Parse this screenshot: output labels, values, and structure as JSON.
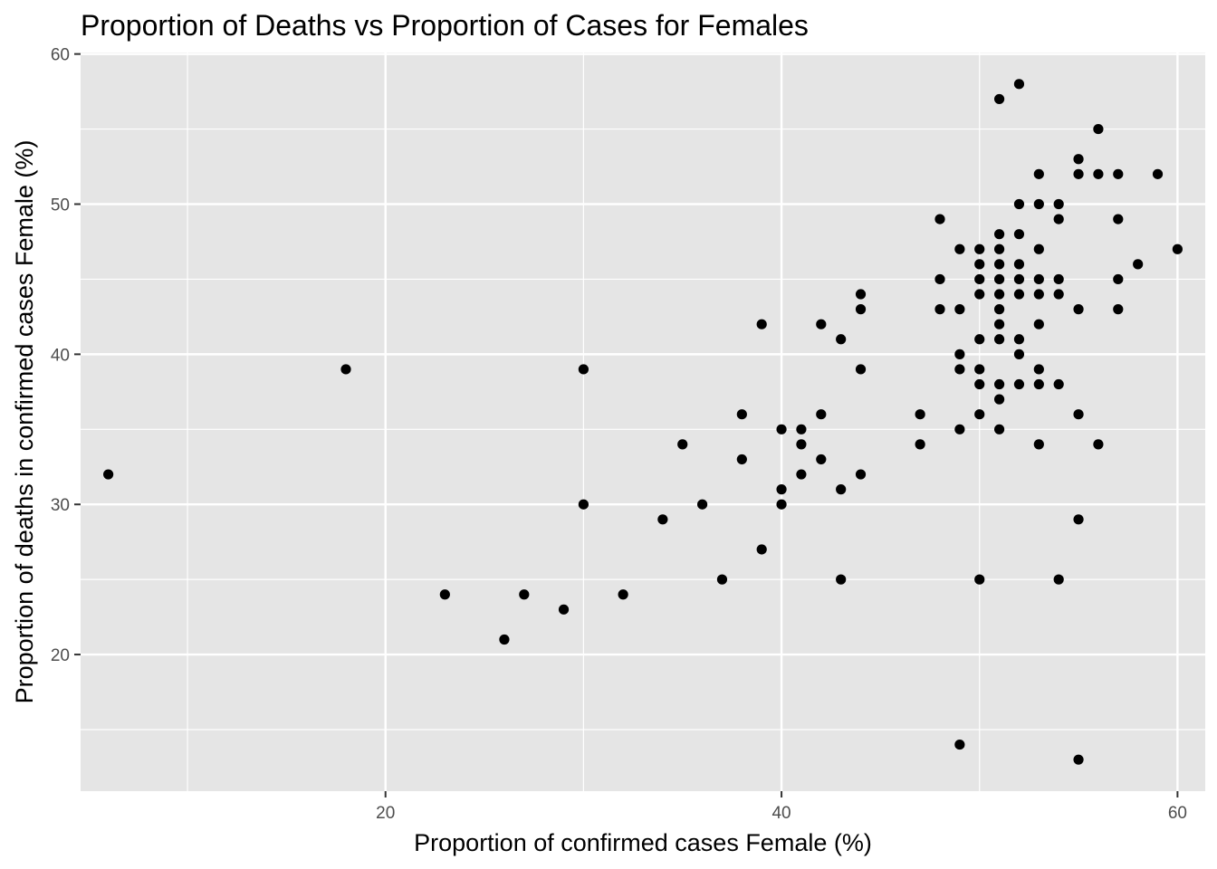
{
  "chart_data": {
    "type": "scatter",
    "title": "Proportion of Deaths vs Proportion of Cases for Females",
    "xlabel": "Proportion of confirmed cases Female (%)",
    "ylabel": "Proportion of deaths in confirmed cases Female (%)",
    "xlim": [
      4.6,
      61.4
    ],
    "ylim": [
      10.9,
      60.1
    ],
    "xticks": [
      20,
      40,
      60
    ],
    "yticks": [
      20,
      30,
      40,
      50,
      60
    ],
    "xtick_labels": [
      "20",
      "40",
      "60"
    ],
    "ytick_labels": [
      "20",
      "30",
      "40",
      "50",
      "60"
    ],
    "grid": true,
    "colors": {
      "panel": "#e5e5e5",
      "grid": "#ffffff",
      "point": "#000000",
      "tick": "#333333"
    },
    "points": [
      {
        "x": 6,
        "y": 32
      },
      {
        "x": 18,
        "y": 39
      },
      {
        "x": 23,
        "y": 24
      },
      {
        "x": 26,
        "y": 21
      },
      {
        "x": 27,
        "y": 24
      },
      {
        "x": 29,
        "y": 23
      },
      {
        "x": 30,
        "y": 39
      },
      {
        "x": 30,
        "y": 30
      },
      {
        "x": 32,
        "y": 24
      },
      {
        "x": 34,
        "y": 29
      },
      {
        "x": 35,
        "y": 34
      },
      {
        "x": 36,
        "y": 30
      },
      {
        "x": 37,
        "y": 25
      },
      {
        "x": 38,
        "y": 36
      },
      {
        "x": 38,
        "y": 33
      },
      {
        "x": 39,
        "y": 42
      },
      {
        "x": 39,
        "y": 27
      },
      {
        "x": 40,
        "y": 35
      },
      {
        "x": 40,
        "y": 31
      },
      {
        "x": 40,
        "y": 30
      },
      {
        "x": 41,
        "y": 35
      },
      {
        "x": 41,
        "y": 34
      },
      {
        "x": 41,
        "y": 32
      },
      {
        "x": 42,
        "y": 42
      },
      {
        "x": 42,
        "y": 36
      },
      {
        "x": 42,
        "y": 33
      },
      {
        "x": 43,
        "y": 41
      },
      {
        "x": 43,
        "y": 31
      },
      {
        "x": 43,
        "y": 25
      },
      {
        "x": 44,
        "y": 44
      },
      {
        "x": 44,
        "y": 43
      },
      {
        "x": 44,
        "y": 39
      },
      {
        "x": 44,
        "y": 32
      },
      {
        "x": 47,
        "y": 36
      },
      {
        "x": 47,
        "y": 34
      },
      {
        "x": 48,
        "y": 49
      },
      {
        "x": 48,
        "y": 45
      },
      {
        "x": 48,
        "y": 43
      },
      {
        "x": 49,
        "y": 47
      },
      {
        "x": 49,
        "y": 43
      },
      {
        "x": 49,
        "y": 40
      },
      {
        "x": 49,
        "y": 39
      },
      {
        "x": 49,
        "y": 35
      },
      {
        "x": 49,
        "y": 14
      },
      {
        "x": 50,
        "y": 47
      },
      {
        "x": 50,
        "y": 46
      },
      {
        "x": 50,
        "y": 45
      },
      {
        "x": 50,
        "y": 44
      },
      {
        "x": 50,
        "y": 41
      },
      {
        "x": 50,
        "y": 39
      },
      {
        "x": 50,
        "y": 38
      },
      {
        "x": 50,
        "y": 36
      },
      {
        "x": 50,
        "y": 25
      },
      {
        "x": 51,
        "y": 57
      },
      {
        "x": 51,
        "y": 48
      },
      {
        "x": 51,
        "y": 47
      },
      {
        "x": 51,
        "y": 46
      },
      {
        "x": 51,
        "y": 45
      },
      {
        "x": 51,
        "y": 44
      },
      {
        "x": 51,
        "y": 43
      },
      {
        "x": 51,
        "y": 42
      },
      {
        "x": 51,
        "y": 41
      },
      {
        "x": 51,
        "y": 38
      },
      {
        "x": 51,
        "y": 37
      },
      {
        "x": 51,
        "y": 35
      },
      {
        "x": 52,
        "y": 58
      },
      {
        "x": 52,
        "y": 50
      },
      {
        "x": 52,
        "y": 48
      },
      {
        "x": 52,
        "y": 46
      },
      {
        "x": 52,
        "y": 45
      },
      {
        "x": 52,
        "y": 44
      },
      {
        "x": 52,
        "y": 41
      },
      {
        "x": 52,
        "y": 40
      },
      {
        "x": 52,
        "y": 38
      },
      {
        "x": 53,
        "y": 52
      },
      {
        "x": 53,
        "y": 50
      },
      {
        "x": 53,
        "y": 47
      },
      {
        "x": 53,
        "y": 45
      },
      {
        "x": 53,
        "y": 44
      },
      {
        "x": 53,
        "y": 42
      },
      {
        "x": 53,
        "y": 39
      },
      {
        "x": 53,
        "y": 38
      },
      {
        "x": 53,
        "y": 34
      },
      {
        "x": 54,
        "y": 50
      },
      {
        "x": 54,
        "y": 49
      },
      {
        "x": 54,
        "y": 45
      },
      {
        "x": 54,
        "y": 44
      },
      {
        "x": 54,
        "y": 38
      },
      {
        "x": 54,
        "y": 25
      },
      {
        "x": 55,
        "y": 53
      },
      {
        "x": 55,
        "y": 52
      },
      {
        "x": 55,
        "y": 43
      },
      {
        "x": 55,
        "y": 36
      },
      {
        "x": 55,
        "y": 29
      },
      {
        "x": 55,
        "y": 13
      },
      {
        "x": 56,
        "y": 55
      },
      {
        "x": 56,
        "y": 52
      },
      {
        "x": 56,
        "y": 34
      },
      {
        "x": 57,
        "y": 52
      },
      {
        "x": 57,
        "y": 49
      },
      {
        "x": 57,
        "y": 45
      },
      {
        "x": 57,
        "y": 43
      },
      {
        "x": 58,
        "y": 46
      },
      {
        "x": 59,
        "y": 52
      },
      {
        "x": 60,
        "y": 47
      }
    ]
  }
}
